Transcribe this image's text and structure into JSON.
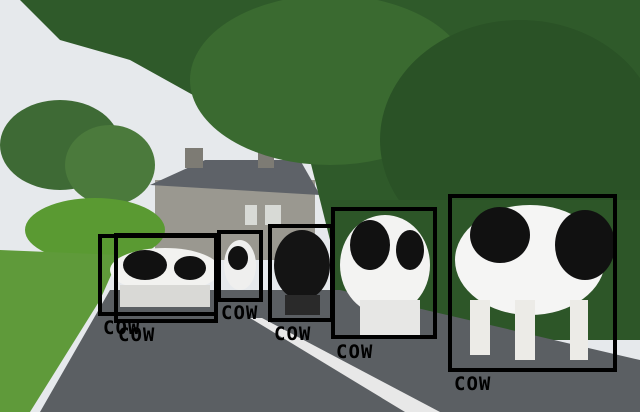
{
  "photo": {
    "subject": "herd of black-and-white cows walking on a country road",
    "colors": {
      "sky": "#e6e9ec",
      "trees": "#2f5a2a",
      "grass": "#5f9a3a",
      "road": "#5b5f63",
      "house": "#9a9890",
      "roof": "#5e6268"
    }
  },
  "detections": [
    {
      "label": "COW"
    },
    {
      "label": "COW"
    },
    {
      "label": "COW"
    },
    {
      "label": "COW"
    },
    {
      "label": "COW"
    },
    {
      "label": "COW"
    }
  ]
}
